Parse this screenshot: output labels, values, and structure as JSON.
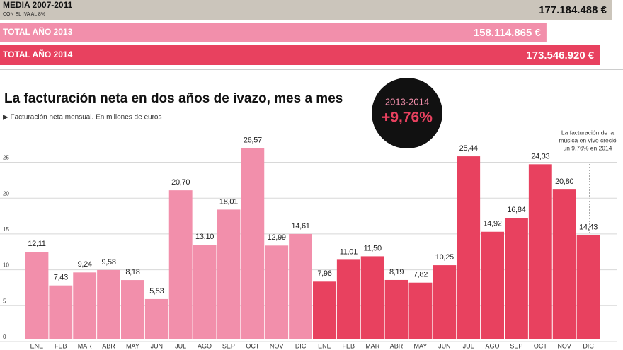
{
  "chart_data": [
    {
      "type": "hbar",
      "categories": [
        "MEDIA 2007-2011",
        "TOTAL AÑO 2013",
        "TOTAL AÑO 2014"
      ],
      "category_notes": [
        "CON EL IVA AL 8%",
        null,
        null
      ],
      "values": [
        177184488,
        158114865,
        173546920
      ],
      "value_labels": [
        "177.184.488 €",
        "158.114.865 €",
        "173.546.920 €"
      ],
      "colors": [
        "#cbc5bb",
        "#f28fab",
        "#e8415f"
      ]
    },
    {
      "type": "bar",
      "title": "La facturación neta en dos años de ivazo, mes a mes",
      "subtitle": "▶ Facturación neta mensual. En millones de euros",
      "badge": {
        "top": "2013-2014",
        "value": "+9,76%"
      },
      "annotation_lines": [
        "La facturación de la",
        "música en vivo creció",
        "un 9,76% en 2014"
      ],
      "categories": [
        "ENE",
        "FEB",
        "MAR",
        "ABR",
        "MAY",
        "JUN",
        "JUL",
        "AGO",
        "SEP",
        "OCT",
        "NOV",
        "DIC",
        "ENE",
        "FEB",
        "MAR",
        "ABR",
        "MAY",
        "JUN",
        "JUL",
        "AGO",
        "SEP",
        "OCT",
        "NOV",
        "DIC"
      ],
      "values": [
        12.11,
        7.43,
        9.24,
        9.58,
        8.18,
        5.53,
        20.7,
        13.1,
        18.01,
        26.57,
        12.99,
        14.61,
        7.96,
        11.01,
        11.5,
        8.19,
        7.82,
        10.25,
        25.44,
        14.92,
        16.84,
        24.33,
        20.8,
        14.43
      ],
      "value_labels": [
        "12,11",
        "7,43",
        "9,24",
        "9,58",
        "8,18",
        "5,53",
        "20,70",
        "13,10",
        "18,01",
        "26,57",
        "12,99",
        "14,61",
        "7,96",
        "11,01",
        "11,50",
        "8,19",
        "7,82",
        "10,25",
        "25,44",
        "14,92",
        "16,84",
        "24,33",
        "20,80",
        "14,43"
      ],
      "colors": [
        "#f28fab",
        "#f28fab",
        "#f28fab",
        "#f28fab",
        "#f28fab",
        "#f28fab",
        "#f28fab",
        "#f28fab",
        "#f28fab",
        "#f28fab",
        "#f28fab",
        "#f28fab",
        "#e8415f",
        "#e8415f",
        "#e8415f",
        "#e8415f",
        "#e8415f",
        "#e8415f",
        "#e8415f",
        "#e8415f",
        "#e8415f",
        "#e8415f",
        "#e8415f",
        "#e8415f"
      ],
      "ylim": [
        0,
        29
      ],
      "yticks": [
        0,
        5,
        10,
        15,
        20,
        25
      ],
      "grid": true
    }
  ]
}
